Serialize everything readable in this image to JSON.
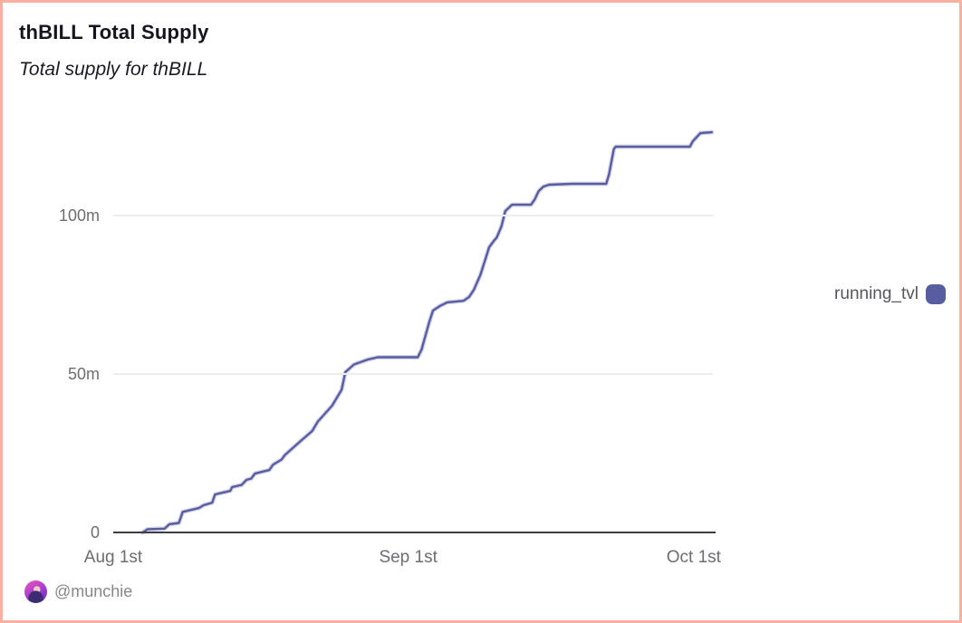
{
  "page": {
    "title": "thBILL Total Supply",
    "subtitle": "Total supply for thBILL",
    "border_color": "#f8b0a0",
    "background_color": "#ffffff"
  },
  "legend": {
    "label": "running_tvl",
    "swatch_color": "#585ca0",
    "position": "right"
  },
  "attribution": {
    "handle": "@munchie",
    "avatar": "munchie-avatar"
  },
  "chart_data": {
    "type": "line",
    "title": "thBILL Total Supply",
    "subtitle": "Total supply for thBILL",
    "xlabel": "",
    "ylabel": "",
    "grid": "horizontal-only",
    "grid_color": "#ededed",
    "axis_color": "#3c3c42",
    "legend_position": "right",
    "x_axis": {
      "unit": "days since Aug 1",
      "range": [
        0,
        63.3
      ],
      "ticks": [
        0,
        31,
        61
      ],
      "tick_labels": [
        "Aug 1st",
        "Sep 1st",
        "Oct 1st"
      ]
    },
    "y_axis": {
      "unit": "token supply (millions)",
      "range": [
        0,
        130
      ],
      "ticks": [
        0,
        50,
        100
      ],
      "tick_labels": [
        "0",
        "50m",
        "100m"
      ]
    },
    "series": [
      {
        "name": "running_tvl",
        "color": "#585ca0",
        "values_in": "millions",
        "points": [
          [
            3.1,
            0
          ],
          [
            3.6,
            1
          ],
          [
            5.4,
            1.2
          ],
          [
            5.9,
            2.6
          ],
          [
            6.9,
            3
          ],
          [
            7.3,
            6.5
          ],
          [
            9.0,
            7.7
          ],
          [
            9.5,
            8.6
          ],
          [
            10.4,
            9.4
          ],
          [
            10.7,
            12
          ],
          [
            12.3,
            13.1
          ],
          [
            12.5,
            14.3
          ],
          [
            13.5,
            15
          ],
          [
            14.0,
            16.6
          ],
          [
            14.5,
            17
          ],
          [
            14.9,
            18.6
          ],
          [
            16.4,
            19.7
          ],
          [
            16.8,
            21.4
          ],
          [
            17.7,
            23
          ],
          [
            18.0,
            24.3
          ],
          [
            19.6,
            28.6
          ],
          [
            20.9,
            32
          ],
          [
            21.5,
            35
          ],
          [
            23.0,
            40
          ],
          [
            24.0,
            45
          ],
          [
            24.4,
            50.6
          ],
          [
            25.3,
            53
          ],
          [
            26.8,
            54.6
          ],
          [
            27.8,
            55.3
          ],
          [
            32.0,
            55.3
          ],
          [
            32.4,
            57.7
          ],
          [
            33.2,
            66.3
          ],
          [
            33.6,
            70
          ],
          [
            34.3,
            71.4
          ],
          [
            35.1,
            72.6
          ],
          [
            36.8,
            73.1
          ],
          [
            37.4,
            74.3
          ],
          [
            37.9,
            76.6
          ],
          [
            38.6,
            81.4
          ],
          [
            39.5,
            90
          ],
          [
            40.0,
            92
          ],
          [
            40.3,
            93.1
          ],
          [
            40.8,
            96.6
          ],
          [
            41.2,
            101.4
          ],
          [
            41.9,
            103.4
          ],
          [
            43.9,
            103.4
          ],
          [
            44.3,
            105.1
          ],
          [
            44.7,
            107.7
          ],
          [
            45.2,
            109.1
          ],
          [
            45.8,
            109.7
          ],
          [
            48.2,
            110
          ],
          [
            51.8,
            110
          ],
          [
            52.1,
            112.9
          ],
          [
            52.6,
            120.9
          ],
          [
            52.8,
            121.7
          ],
          [
            60.6,
            121.7
          ],
          [
            60.9,
            123.4
          ],
          [
            61.7,
            126
          ],
          [
            62.9,
            126.3
          ]
        ]
      }
    ]
  }
}
